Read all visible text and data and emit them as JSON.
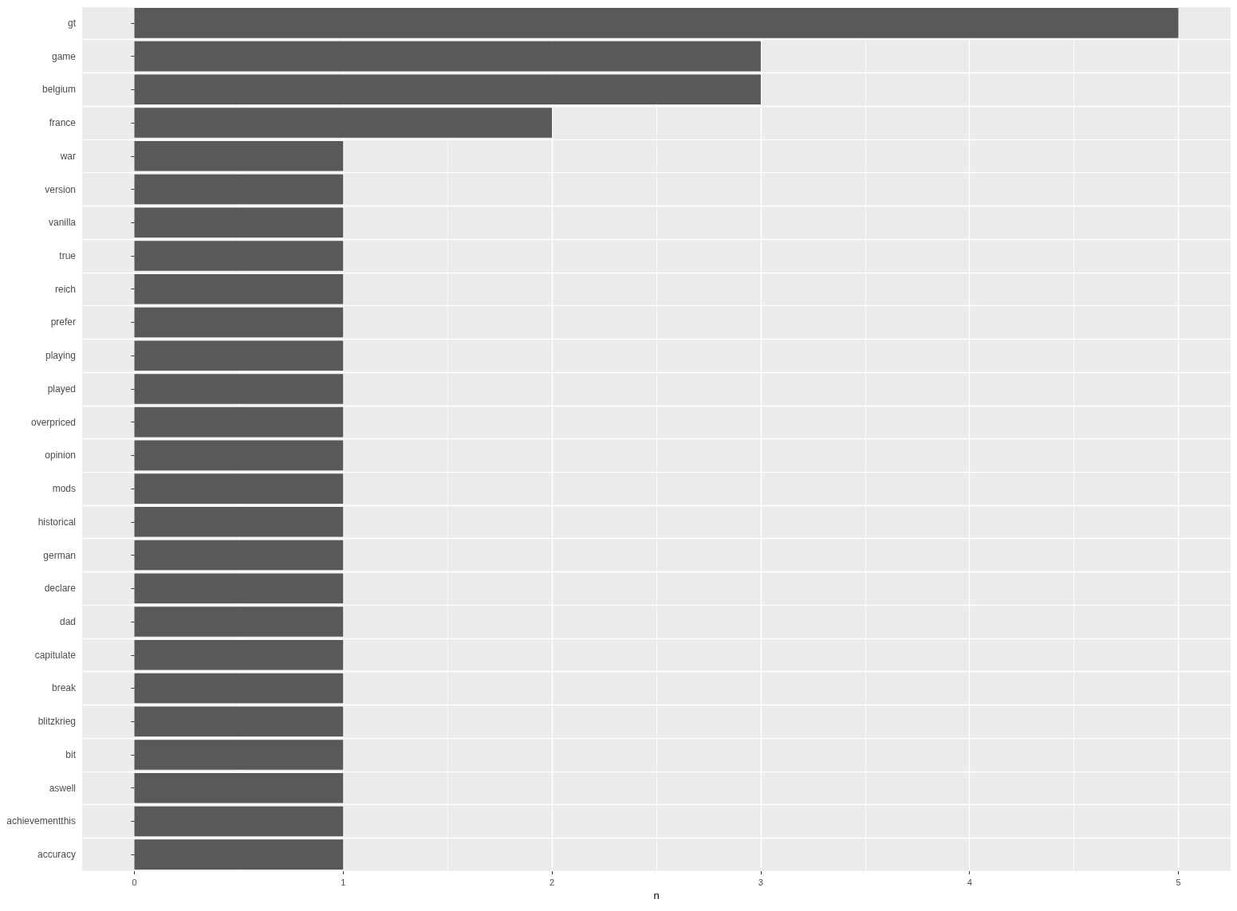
{
  "chart_data": {
    "type": "bar",
    "orientation": "horizontal",
    "xlabel": "n",
    "categories": [
      "gt",
      "game",
      "belgium",
      "france",
      "war",
      "version",
      "vanilla",
      "true",
      "reich",
      "prefer",
      "playing",
      "played",
      "overpriced",
      "opinion",
      "mods",
      "historical",
      "german",
      "declare",
      "dad",
      "capitulate",
      "break",
      "blitzkrieg",
      "bit",
      "aswell",
      "achievementthis",
      "accuracy"
    ],
    "values": [
      5,
      3,
      3,
      2,
      1,
      1,
      1,
      1,
      1,
      1,
      1,
      1,
      1,
      1,
      1,
      1,
      1,
      1,
      1,
      1,
      1,
      1,
      1,
      1,
      1,
      1
    ],
    "color": "#595959",
    "xlim": [
      -0.25,
      5.25
    ],
    "xticks": [
      0,
      1,
      2,
      3,
      4,
      5
    ],
    "grid": true
  }
}
